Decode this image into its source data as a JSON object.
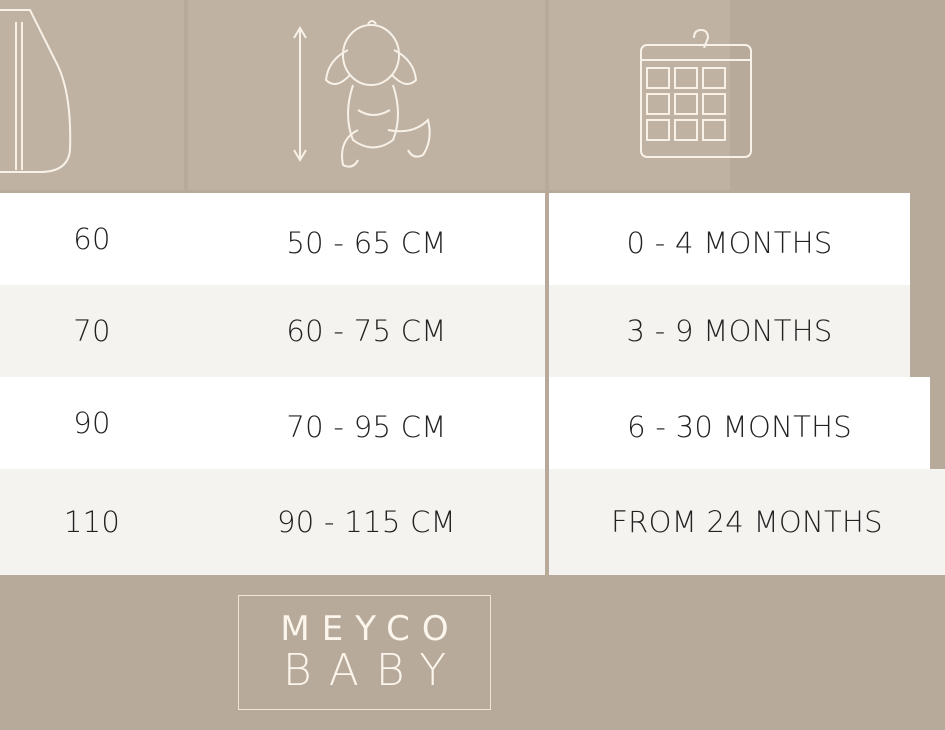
{
  "columns": [
    {
      "icon": "sleeping-bag-icon",
      "rows": [
        "60",
        "70",
        "90",
        "110"
      ]
    },
    {
      "icon": "baby-height-icon",
      "rows": [
        "50 - 65 CM",
        "60 - 75 CM",
        "70 - 95 CM",
        "90 - 115 CM"
      ]
    },
    {
      "icon": "calendar-icon",
      "rows": [
        "0 - 4 MONTHS",
        "3 - 9 MONTHS",
        "6 - 30 MONTHS",
        "FROM 24 MONTHS"
      ]
    }
  ],
  "logo": {
    "line1": "MEYCO",
    "line2": "BABY"
  },
  "colors": {
    "header": "#bfb2a2",
    "footer": "#b7aa9a",
    "row_alt": "#f5f3f0",
    "text": "#222222"
  }
}
